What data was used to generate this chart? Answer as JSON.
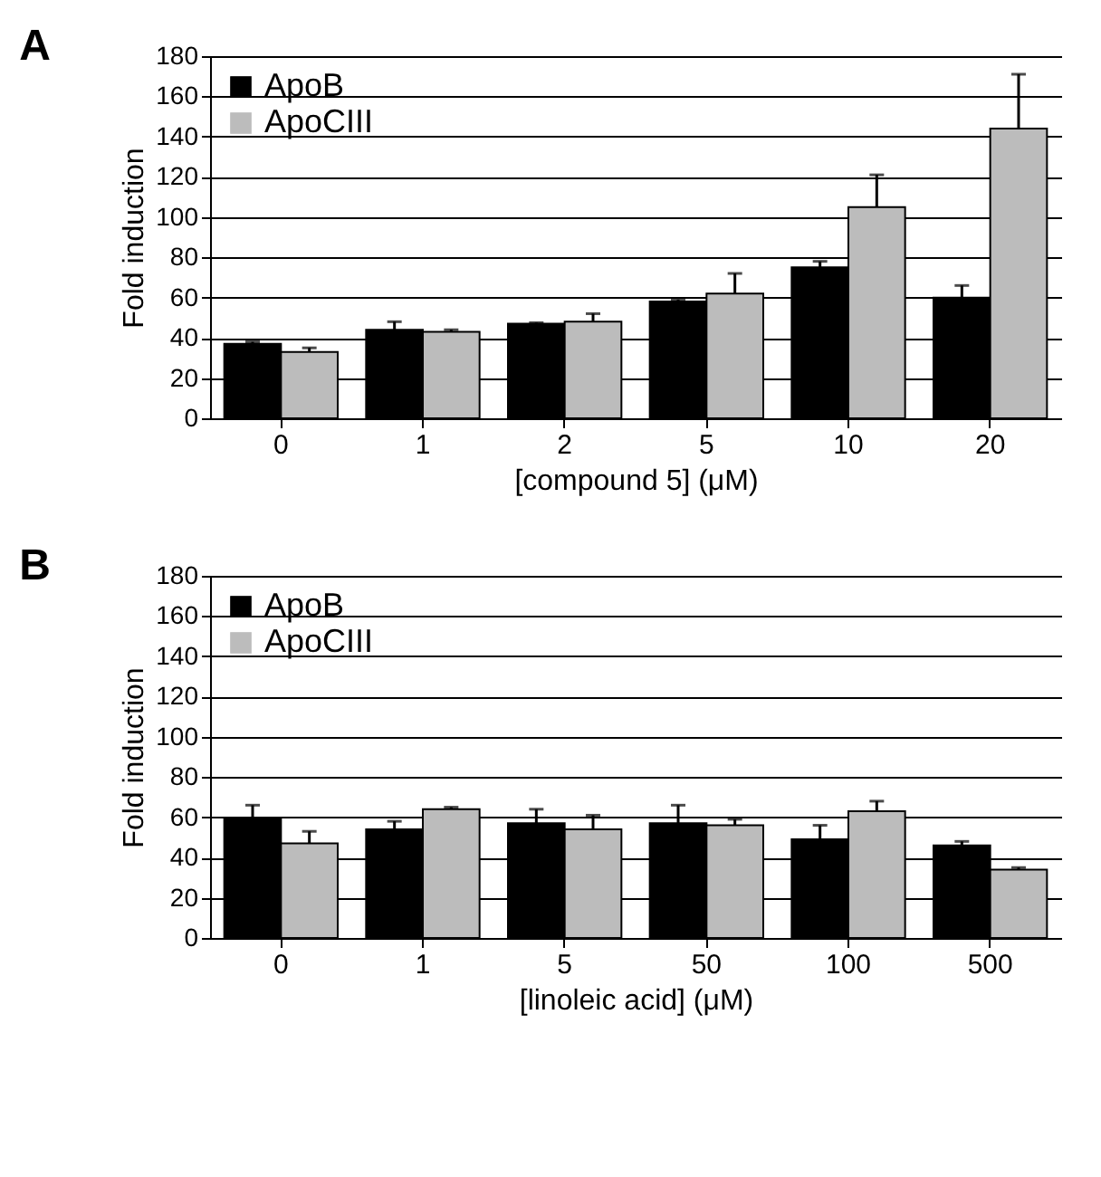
{
  "chart_data": [
    {
      "type": "bar",
      "title": "A",
      "xlabel": "[compound 5] (μM)",
      "ylabel": "Fold induction",
      "categories": [
        "0",
        "1",
        "2",
        "5",
        "10",
        "20"
      ],
      "series": [
        {
          "name": "ApoB",
          "color": "#000000",
          "values": [
            37,
            44,
            47,
            58,
            75,
            60
          ],
          "errors": [
            [
              37,
              38
            ],
            [
              44,
              48
            ],
            [
              47,
              47.5
            ],
            [
              58,
              59
            ],
            [
              75,
              78
            ],
            [
              60,
              66
            ]
          ]
        },
        {
          "name": "ApoCIII",
          "color": "#bcbcbc",
          "values": [
            33,
            43,
            48,
            62,
            105,
            144
          ],
          "errors": [
            [
              33,
              35
            ],
            [
              43,
              44
            ],
            [
              48,
              52
            ],
            [
              62,
              72
            ],
            [
              105,
              121
            ],
            [
              144,
              171
            ]
          ]
        }
      ],
      "ylim": [
        0,
        180
      ],
      "yticks": [
        0,
        20,
        40,
        60,
        80,
        100,
        120,
        140,
        160,
        180
      ],
      "grid": "y",
      "legend": "top left"
    },
    {
      "type": "bar",
      "title": "B",
      "xlabel": "[linoleic acid] (μM)",
      "ylabel": "Fold induction",
      "categories": [
        "0",
        "1",
        "5",
        "50",
        "100",
        "500"
      ],
      "series": [
        {
          "name": "ApoB",
          "color": "#000000",
          "values": [
            59,
            54,
            57,
            57,
            49,
            46
          ],
          "errors": [
            [
              59,
              66
            ],
            [
              54,
              58
            ],
            [
              57,
              64
            ],
            [
              57,
              66
            ],
            [
              49,
              56
            ],
            [
              46,
              48
            ]
          ]
        },
        {
          "name": "ApoCIII",
          "color": "#bcbcbc",
          "values": [
            47,
            64,
            54,
            56,
            63,
            34
          ],
          "errors": [
            [
              47,
              53
            ],
            [
              64,
              65
            ],
            [
              54,
              61
            ],
            [
              56,
              59
            ],
            [
              63,
              68
            ],
            [
              34,
              35
            ]
          ]
        }
      ],
      "ylim": [
        0,
        180
      ],
      "yticks": [
        0,
        20,
        40,
        60,
        80,
        100,
        120,
        140,
        160,
        180
      ],
      "grid": "y",
      "legend": "top left"
    }
  ]
}
